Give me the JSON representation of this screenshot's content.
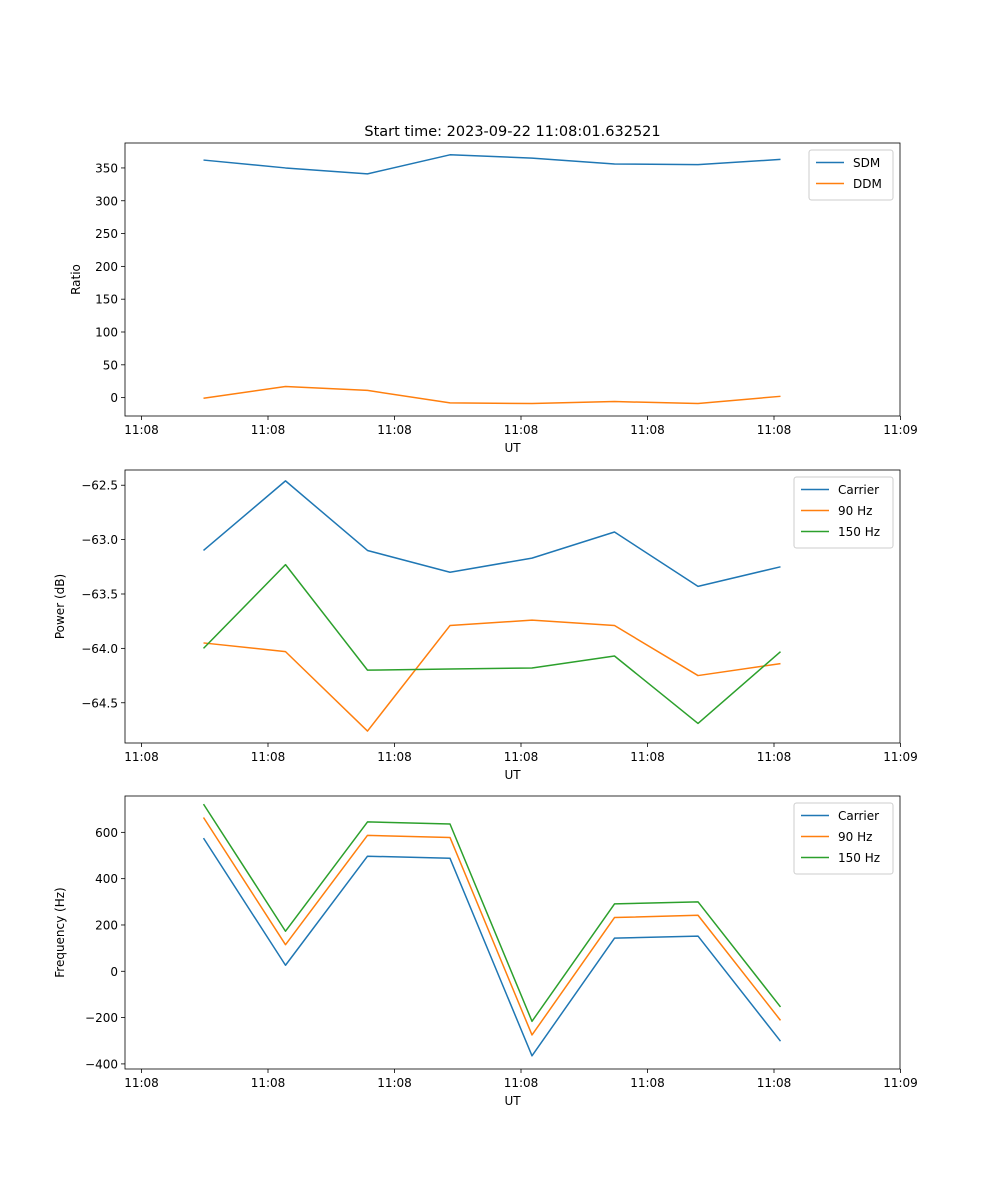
{
  "figure": {
    "title": "Start time: 2023-09-22 11:08:01.632521"
  },
  "chart_data": [
    {
      "type": "line",
      "xlabel": "UT",
      "ylabel": "Ratio",
      "xticks": [
        "11:08",
        "11:08",
        "11:08",
        "11:08",
        "11:08",
        "11:08",
        "11:09"
      ],
      "ylim": [
        -28,
        388
      ],
      "yticks": [
        0,
        50,
        100,
        150,
        200,
        250,
        300,
        350
      ],
      "ytick_labels": [
        "0",
        "50",
        "100",
        "150",
        "200",
        "250",
        "300",
        "350"
      ],
      "legend_position": "top-right",
      "series": [
        {
          "name": "SDM",
          "color": "#1f77b4",
          "values": [
            362,
            350,
            341,
            370,
            365,
            356,
            355,
            363
          ]
        },
        {
          "name": "DDM",
          "color": "#ff7f0e",
          "values": [
            -1,
            17,
            11,
            -8,
            -9,
            -6,
            -9,
            2
          ]
        }
      ]
    },
    {
      "type": "line",
      "xlabel": "UT",
      "ylabel": "Power (dB)",
      "xticks": [
        "11:08",
        "11:08",
        "11:08",
        "11:08",
        "11:08",
        "11:08",
        "11:09"
      ],
      "ylim": [
        -64.87,
        -62.36
      ],
      "yticks": [
        -64.5,
        -64.0,
        -63.5,
        -63.0,
        -62.5
      ],
      "ytick_labels": [
        "−64.5",
        "−64.0",
        "−63.5",
        "−63.0",
        "−62.5"
      ],
      "legend_position": "top-right",
      "series": [
        {
          "name": "Carrier",
          "color": "#1f77b4",
          "values": [
            -63.1,
            -62.46,
            -63.1,
            -63.3,
            -63.17,
            -62.93,
            -63.43,
            -63.25
          ]
        },
        {
          "name": "90 Hz",
          "color": "#ff7f0e",
          "values": [
            -63.95,
            -64.03,
            -64.76,
            -63.79,
            -63.74,
            -63.79,
            -64.25,
            -64.14
          ]
        },
        {
          "name": "150 Hz",
          "color": "#2ca02c",
          "values": [
            -64.0,
            -63.23,
            -64.2,
            -64.19,
            -64.18,
            -64.07,
            -64.69,
            -64.03
          ]
        }
      ]
    },
    {
      "type": "line",
      "xlabel": "UT",
      "ylabel": "Frequency (Hz)",
      "xticks": [
        "11:08",
        "11:08",
        "11:08",
        "11:08",
        "11:08",
        "11:08",
        "11:09"
      ],
      "ylim": [
        -422,
        757
      ],
      "yticks": [
        -400,
        -200,
        0,
        200,
        400,
        600
      ],
      "ytick_labels": [
        "−400",
        "−200",
        "0",
        "200",
        "400",
        "600"
      ],
      "legend_position": "top-right",
      "series": [
        {
          "name": "Carrier",
          "color": "#1f77b4",
          "values": [
            575,
            26,
            497,
            488,
            -365,
            143,
            152,
            -302
          ]
        },
        {
          "name": "90 Hz",
          "color": "#ff7f0e",
          "values": [
            664,
            115,
            587,
            578,
            -275,
            232,
            242,
            -212
          ]
        },
        {
          "name": "150 Hz",
          "color": "#2ca02c",
          "values": [
            722,
            173,
            645,
            636,
            -216,
            291,
            300,
            -154
          ]
        }
      ]
    }
  ]
}
